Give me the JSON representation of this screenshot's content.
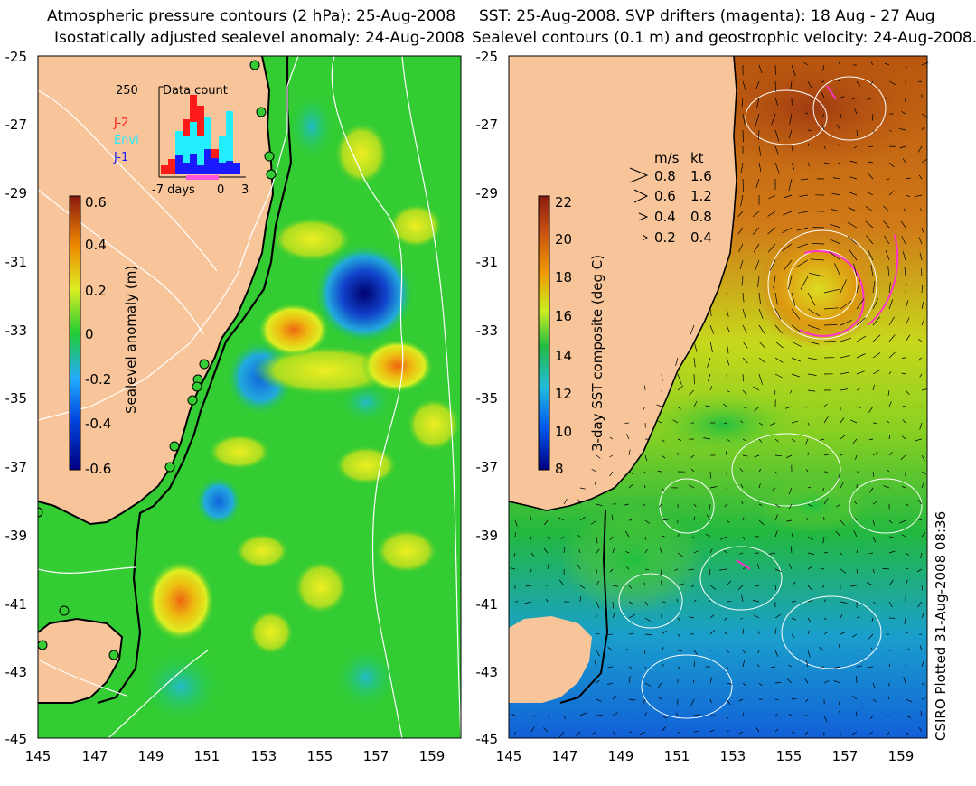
{
  "left_panel": {
    "title_line1": "Atmospheric pressure contours (2 hPa): 25-Aug-2008",
    "title_line2": "Isostatically adjusted sealevel anomaly: 24-Aug-2008",
    "colorbar": {
      "label": "Sealevel anomaly (m)",
      "ticks": [
        "0.6",
        "0.4",
        "0.2",
        "0",
        "-0.2",
        "-0.4",
        "-0.6"
      ]
    },
    "data_count": {
      "title": "Data count",
      "ymax_label": "250",
      "x_label": "-7 days",
      "x_zero": "0",
      "x_three": "3",
      "legend": [
        {
          "name": "J-2",
          "color": "#ff1a1a"
        },
        {
          "name": "Envi",
          "color": "#22eeff"
        },
        {
          "name": "J-1",
          "color": "#1a1aff"
        }
      ]
    }
  },
  "right_panel": {
    "title_line1": "SST: 25-Aug-2008. SVP drifters (magenta): 18 Aug - 27 Aug",
    "title_line2": "Sealevel contours (0.1 m) and geostrophic velocity: 24-Aug-2008.",
    "colorbar": {
      "label": "3-day SST composite (deg C)",
      "ticks": [
        "22",
        "20",
        "18",
        "16",
        "14",
        "12",
        "10",
        "8"
      ]
    },
    "velocity_legend": {
      "header_ms": "m/s",
      "header_kt": "kt",
      "rows": [
        {
          "ms": "0.8",
          "kt": "1.6"
        },
        {
          "ms": "0.6",
          "kt": "1.2"
        },
        {
          "ms": "0.4",
          "kt": "0.8"
        },
        {
          "ms": "0.2",
          "kt": "0.4"
        }
      ]
    }
  },
  "axes": {
    "lat_ticks": [
      "-25",
      "-27",
      "-29",
      "-31",
      "-33",
      "-35",
      "-37",
      "-39",
      "-41",
      "-43",
      "-45"
    ],
    "lon_ticks": [
      "145",
      "147",
      "149",
      "151",
      "153",
      "155",
      "157",
      "159"
    ]
  },
  "credit": "CSIRO Plotted 31-Aug-2008 08:36",
  "colors": {
    "land": "#f8c59a",
    "ssla_base": "#33cc33",
    "coastline": "#000000",
    "pressure_contour": "#ffffff",
    "drifter": "#ff33cc"
  }
}
